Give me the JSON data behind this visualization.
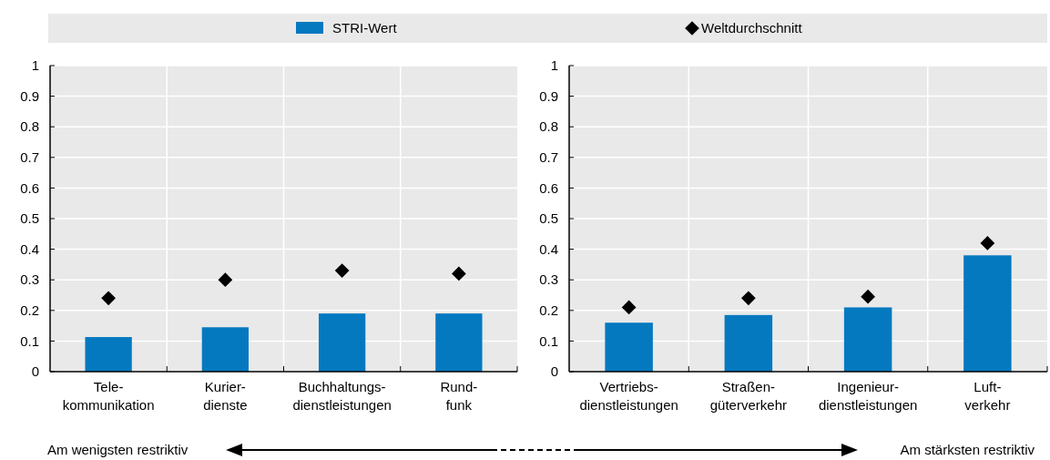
{
  "chart_data": [
    {
      "type": "bar",
      "categories": [
        "Tele-\nkommunikation",
        "Kurier-\ndienste",
        "Buchhaltungs-\ndienstleistungen",
        "Rund-\nfunk"
      ],
      "series": [
        {
          "name": "STRI-Wert",
          "color": "#0579c0",
          "values": [
            0.113,
            0.145,
            0.19,
            0.19
          ]
        },
        {
          "name": "Weltdurchschnitt",
          "type": "scatter",
          "marker": "diamond",
          "color": "#000000",
          "x": [
            "Tele-\nkommunikation",
            "Kurier-\ndienste",
            "Buchhaltungs-\ndienstleistungen",
            "Rund-\nfunk"
          ],
          "values": [
            0.24,
            0.3,
            0.33,
            0.32
          ]
        }
      ],
      "ylim": [
        0,
        1
      ],
      "yticks": [
        0,
        0.1,
        0.2,
        0.3,
        0.4,
        0.5,
        0.6,
        0.7,
        0.8,
        0.9,
        1
      ],
      "grid": true,
      "legend": "top",
      "annotations": [
        "Am wenigsten restriktiv",
        "Am stärksten restriktiv"
      ]
    },
    {
      "type": "bar",
      "categories": [
        "Vertriebs-\ndienstleistungen",
        "Straßen-\ngüterverkehr",
        "Ingenieur-\ndienstleistungen",
        "Luft-\nverkehr"
      ],
      "series": [
        {
          "name": "STRI-Wert",
          "color": "#0579c0",
          "values": [
            0.16,
            0.185,
            0.21,
            0.38
          ]
        },
        {
          "name": "Weltdurchschnitt",
          "type": "scatter",
          "marker": "diamond",
          "color": "#000000",
          "x": [
            "Vertriebs-\ndienstleistungen",
            "Straßen-\ngüterverkehr",
            "Ingenieur-\ndienstleistungen",
            "Luft-\nverkehr"
          ],
          "values": [
            0.21,
            0.24,
            0.245,
            0.42
          ]
        }
      ],
      "ylim": [
        0,
        1
      ],
      "yticks": [
        0,
        0.1,
        0.2,
        0.3,
        0.4,
        0.5,
        0.6,
        0.7,
        0.8,
        0.9,
        1
      ],
      "grid": true,
      "legend": "top"
    }
  ]
}
